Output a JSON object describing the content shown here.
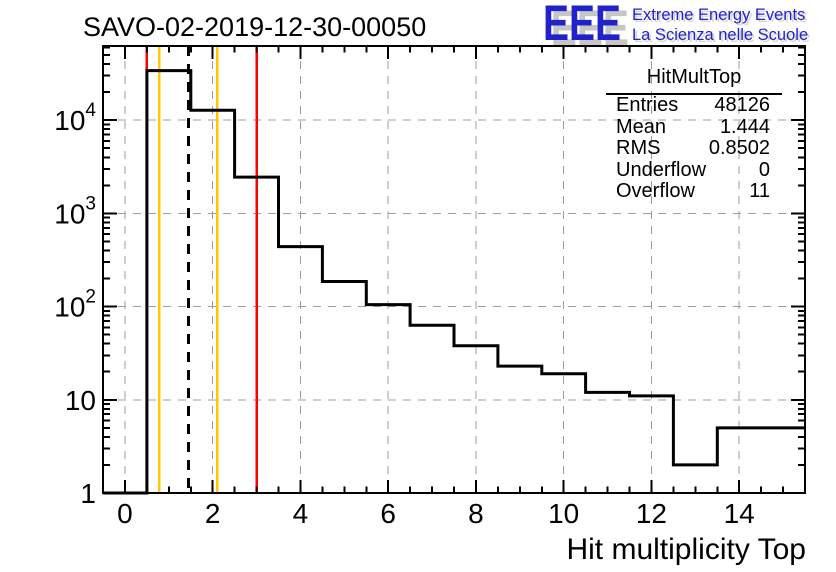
{
  "logo": {
    "acronym": "EEE",
    "line1": "Extreme Energy Events",
    "line2": "La Scienza nelle Scuole",
    "color": "#2222cc",
    "shadow_color": "#c6c6c6"
  },
  "stats_box": {
    "title": "HitMultTop",
    "rows": [
      {
        "label": "Entries",
        "value": "48126"
      },
      {
        "label": "Mean",
        "value": "1.444"
      },
      {
        "label": "RMS",
        "value": "0.8502"
      },
      {
        "label": "Underflow",
        "value": "0"
      },
      {
        "label": "Overflow",
        "value": "11"
      }
    ]
  },
  "chart_data": {
    "type": "bar",
    "style": "step-outline-histogram",
    "title": "SAVO-02-2019-12-30-00050",
    "xlabel": "Hit multiplicity Top",
    "ylabel": "",
    "yscale": "log",
    "xlim": [
      -0.5,
      15.5
    ],
    "ylim": [
      1,
      62500
    ],
    "bin_centers": [
      0,
      1,
      2,
      3,
      4,
      5,
      6,
      7,
      8,
      9,
      10,
      11,
      12,
      13,
      14,
      15
    ],
    "values": [
      0,
      34000,
      12800,
      2450,
      440,
      186,
      105,
      63,
      38,
      23,
      19,
      12,
      11,
      2,
      5,
      5
    ],
    "x_tick_labels": [
      {
        "value": 0,
        "label": "0"
      },
      {
        "value": 2,
        "label": "2"
      },
      {
        "value": 4,
        "label": "4"
      },
      {
        "value": 6,
        "label": "6"
      },
      {
        "value": 8,
        "label": "8"
      },
      {
        "value": 10,
        "label": "10"
      },
      {
        "value": 12,
        "label": "12"
      },
      {
        "value": 14,
        "label": "14"
      }
    ],
    "y_tick_labels": [
      {
        "value": 1,
        "base": "1",
        "exp": ""
      },
      {
        "value": 10,
        "base": "10",
        "exp": ""
      },
      {
        "value": 100,
        "base": "10",
        "exp": "2"
      },
      {
        "value": 1000,
        "base": "10",
        "exp": "3"
      },
      {
        "value": 10000,
        "base": "10",
        "exp": "4"
      }
    ],
    "grid": {
      "style": "dashed",
      "x_lines": [
        0,
        2,
        4,
        6,
        8,
        10,
        12,
        14
      ],
      "y_lines": [
        10,
        100,
        1000,
        10000
      ]
    },
    "marker_lines": {
      "red": [
        0.5,
        3.0
      ],
      "yellow": [
        0.78,
        2.1
      ],
      "black_dashed": [
        1.444
      ]
    },
    "colors": {
      "histogram": "#000000",
      "red": "#ff0000",
      "yellow": "#ffc800",
      "grid": "#9c9c9c",
      "axis": "#000000",
      "mean_line": "#000000"
    },
    "legend": null
  }
}
